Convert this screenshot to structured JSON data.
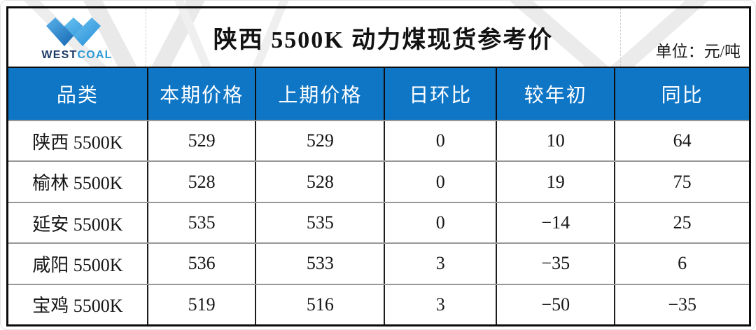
{
  "header": {
    "title": "陕西 5500K 动力煤现货参考价",
    "unit_label": "单位：元/吨"
  },
  "logo": {
    "brand_west": "WEST",
    "brand_coal": "COAL",
    "mark": "westcoal-w-chevrons-icon"
  },
  "table": {
    "headers": [
      "品类",
      "本期价格",
      "上期价格",
      "日环比",
      "较年初",
      "同比"
    ],
    "rows": [
      {
        "category": "陕西 5500K",
        "values": [
          529,
          529,
          0,
          10,
          64
        ]
      },
      {
        "category": "榆林 5500K",
        "values": [
          528,
          528,
          0,
          19,
          75
        ]
      },
      {
        "category": "延安 5500K",
        "values": [
          535,
          535,
          0,
          -14,
          25
        ]
      },
      {
        "category": "咸阳 5500K",
        "values": [
          536,
          533,
          3,
          -35,
          6
        ]
      },
      {
        "category": "宝鸡 5500K",
        "values": [
          519,
          516,
          3,
          -50,
          -35
        ]
      }
    ]
  },
  "chart_data": {
    "type": "table",
    "title": "陕西 5500K 动力煤现货参考价",
    "unit": "元/吨",
    "columns": [
      "品类",
      "本期价格",
      "上期价格",
      "日环比",
      "较年初",
      "同比"
    ],
    "rows": [
      [
        "陕西 5500K",
        529,
        529,
        0,
        10,
        64
      ],
      [
        "榆林 5500K",
        528,
        528,
        0,
        19,
        75
      ],
      [
        "延安 5500K",
        535,
        535,
        0,
        -14,
        25
      ],
      [
        "咸阳 5500K",
        536,
        533,
        3,
        -35,
        6
      ],
      [
        "宝鸡 5500K",
        519,
        516,
        3,
        -50,
        -35
      ]
    ]
  },
  "colors": {
    "header_blue": "#0f76c6",
    "logo_navy": "#1b3a66",
    "logo_blue": "#2d9ad6",
    "grid_gray": "#989898",
    "border_black": "#0c0c0c"
  }
}
